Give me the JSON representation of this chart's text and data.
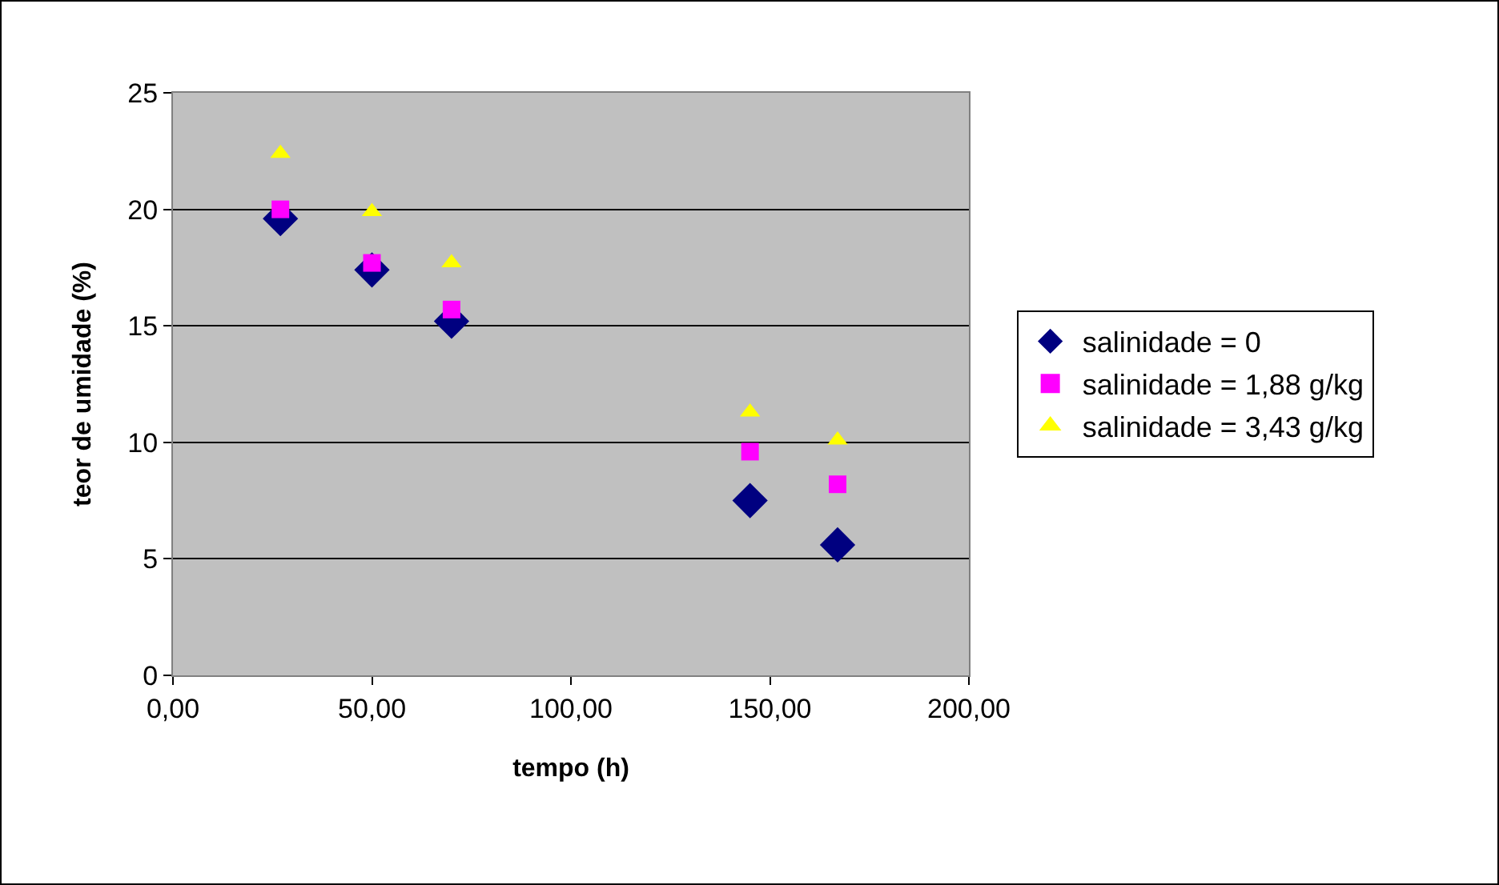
{
  "chart_data": {
    "type": "scatter",
    "xlabel": "tempo (h)",
    "ylabel": "teor de umidade (%)",
    "x": [
      27,
      50,
      70,
      145,
      167
    ],
    "series": [
      {
        "name": "salinidade = 0",
        "color": "#000080",
        "marker": "diamond",
        "values": [
          19.6,
          17.4,
          15.2,
          7.5,
          5.6
        ]
      },
      {
        "name": "salinidade = 1,88 g/kg",
        "color": "#ff00ff",
        "marker": "square",
        "values": [
          20.0,
          17.7,
          15.7,
          9.6,
          8.2
        ]
      },
      {
        "name": "salinidade = 3,43 g/kg",
        "color": "#ffff00",
        "marker": "triangle",
        "values": [
          22.4,
          19.9,
          17.7,
          11.3,
          10.1
        ]
      }
    ],
    "xlim": [
      0,
      200
    ],
    "xticks": [
      {
        "value": 0,
        "label": "0,00"
      },
      {
        "value": 50,
        "label": "50,00"
      },
      {
        "value": 100,
        "label": "100,00"
      },
      {
        "value": 150,
        "label": "150,00"
      },
      {
        "value": 200,
        "label": "200,00"
      }
    ],
    "ylim": [
      0,
      25
    ],
    "yticks": [
      0,
      5,
      10,
      15,
      20,
      25
    ],
    "grid": "y",
    "legend": "right"
  }
}
